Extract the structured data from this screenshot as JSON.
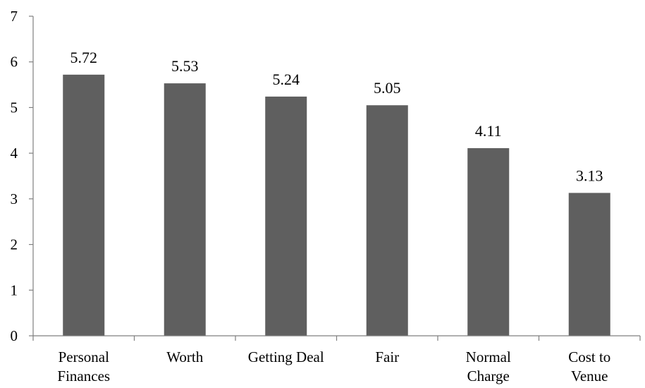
{
  "chart_data": {
    "type": "bar",
    "title": "",
    "xlabel": "",
    "ylabel": "",
    "categories": [
      [
        "Personal",
        "Finances"
      ],
      [
        "Worth"
      ],
      [
        "Getting Deal"
      ],
      [
        "Fair"
      ],
      [
        "Normal",
        "Charge"
      ],
      [
        "Cost to",
        "Venue"
      ]
    ],
    "values": [
      5.72,
      5.53,
      5.24,
      5.05,
      4.11,
      3.13
    ],
    "data_labels": [
      "5.72",
      "5.53",
      "5.24",
      "5.05",
      "4.11",
      "3.13"
    ],
    "ylim": [
      0,
      7
    ],
    "yticks": [
      0,
      1,
      2,
      3,
      4,
      5,
      6,
      7
    ],
    "ytick_labels": [
      "0",
      "1",
      "2",
      "3",
      "4",
      "5",
      "6",
      "7"
    ],
    "grid": false,
    "legend": "none",
    "bar_color": "#5f5f5f",
    "axis_color": "#7f7f7f"
  }
}
